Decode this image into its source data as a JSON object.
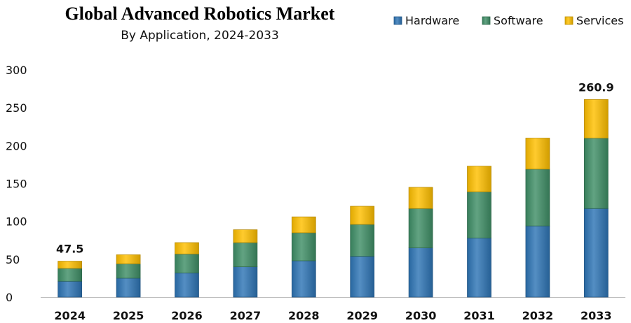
{
  "chart_data": {
    "type": "bar",
    "stacked": true,
    "title": "Global Advanced Robotics Market",
    "subtitle": "By Application, 2024-2033",
    "xlabel": "",
    "ylabel": "",
    "categories": [
      "2024",
      "2025",
      "2026",
      "2027",
      "2028",
      "2029",
      "2030",
      "2031",
      "2032",
      "2033"
    ],
    "ylim": [
      0,
      300
    ],
    "yticks": [
      0,
      50,
      100,
      150,
      200,
      250,
      300
    ],
    "grid": false,
    "legend_position": "top-right",
    "series": [
      {
        "name": "Hardware",
        "color": "#2E75B6",
        "values": [
          21,
          25,
          32,
          40,
          48,
          54,
          65,
          78,
          94,
          117
        ]
      },
      {
        "name": "Software",
        "color": "#3F8F67",
        "values": [
          17,
          19,
          25,
          32,
          37,
          42,
          52,
          61,
          75,
          93
        ]
      },
      {
        "name": "Services",
        "color": "#FFC000",
        "values": [
          9.5,
          12,
          15,
          17,
          21,
          24,
          28,
          34,
          41,
          50.9
        ]
      }
    ],
    "data_labels": [
      {
        "category": "2024",
        "text": "47.5"
      },
      {
        "category": "2033",
        "text": "260.9"
      }
    ]
  }
}
